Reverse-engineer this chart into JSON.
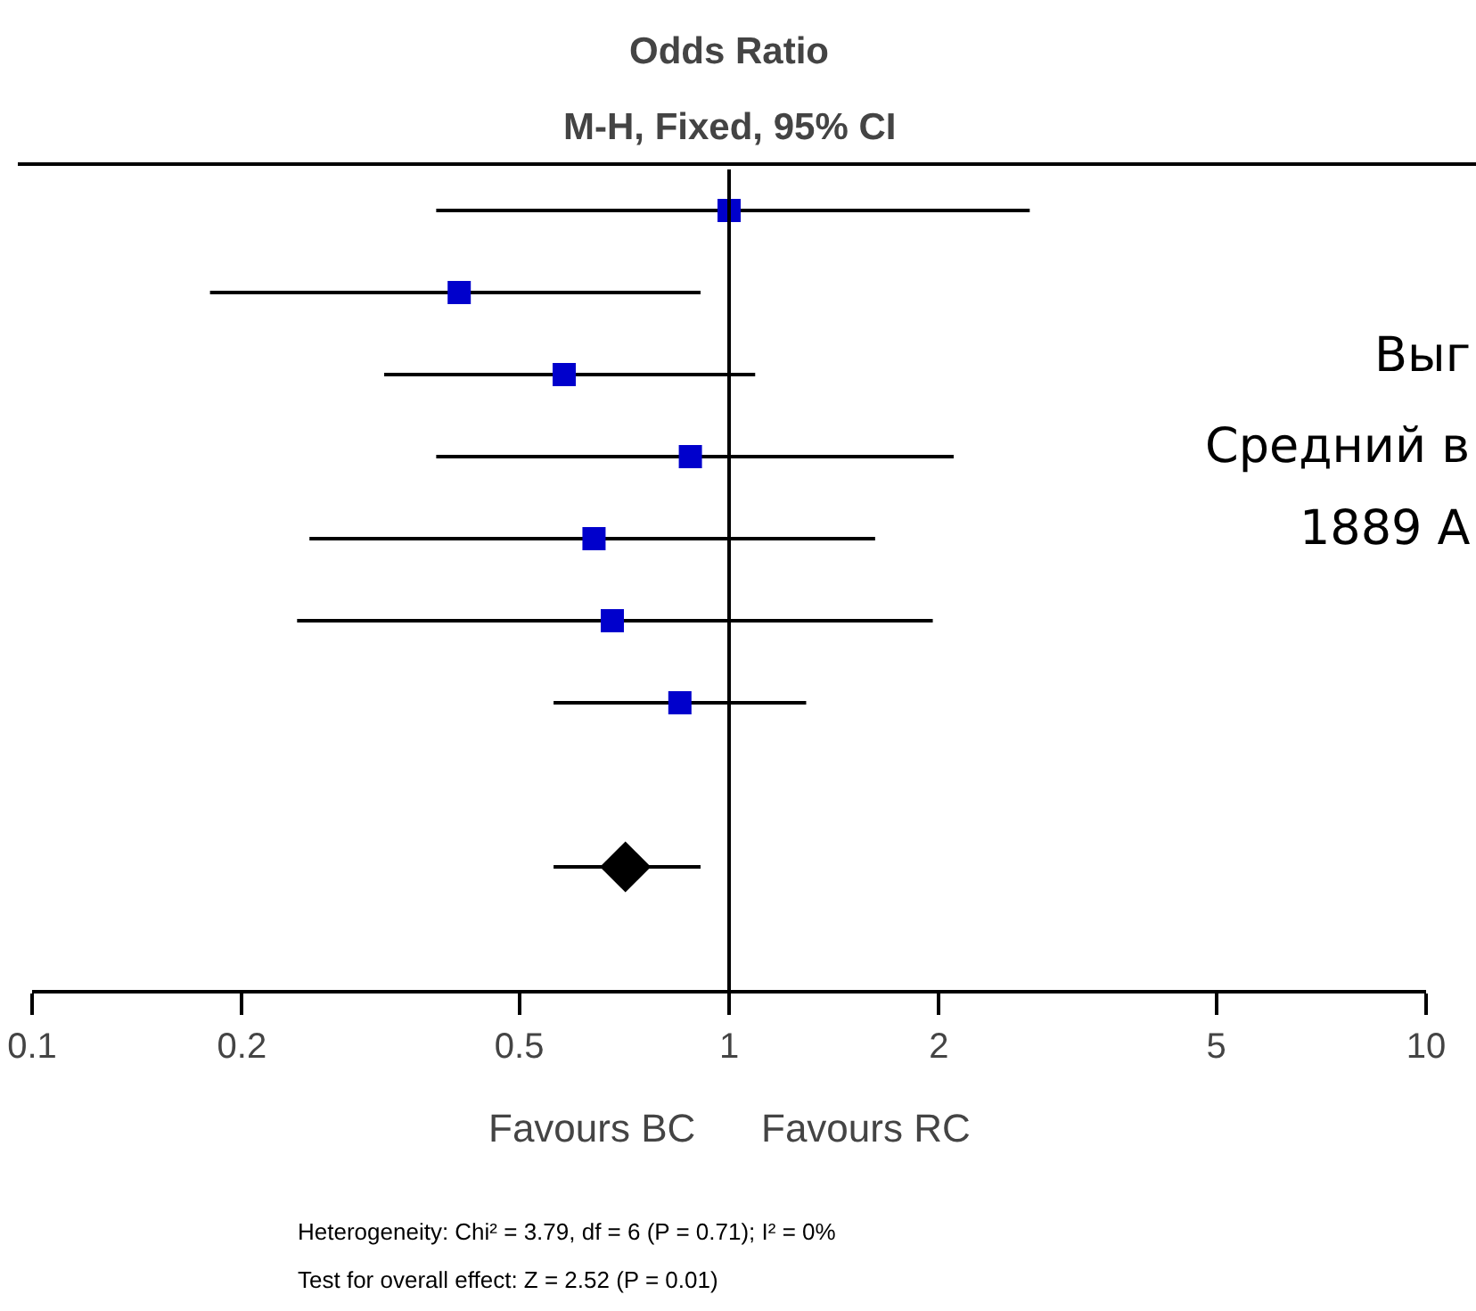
{
  "chart_data": {
    "type": "scatter",
    "title": "Odds Ratio",
    "subtitle": "M-H, Fixed, 95% CI",
    "orientation": "horizontal",
    "log": "x",
    "grid": false,
    "tick_labels": "x",
    "categories": [
      null,
      null,
      null,
      null,
      null,
      null,
      null,
      null,
      null,
      null
    ],
    "xlim": [
      0.1,
      10
    ],
    "xticks": [
      0.1,
      0.2,
      0.5,
      1,
      2,
      5,
      10
    ],
    "series": [
      {
        "color": "#0000cc",
        "marker": "square",
        "values": [
          1.0,
          0.41,
          0.58,
          0.88,
          0.64,
          0.68,
          0.85,
          null,
          null,
          null
        ],
        "errors": [
          [
            0.38,
            2.7
          ],
          [
            0.18,
            0.91
          ],
          [
            0.32,
            1.09
          ],
          [
            0.38,
            2.1
          ],
          [
            0.25,
            1.62
          ],
          [
            0.24,
            1.96
          ],
          [
            0.56,
            1.29
          ],
          null,
          null,
          null
        ]
      },
      {
        "color": "#000000",
        "marker": "diamond",
        "values": [
          null,
          null,
          null,
          null,
          null,
          null,
          null,
          null,
          0.71,
          null
        ],
        "errors": [
          null,
          null,
          null,
          null,
          null,
          null,
          null,
          null,
          [
            0.56,
            0.91
          ],
          null
        ]
      }
    ],
    "ref_lines": [
      {
        "axis": "x",
        "value": 1,
        "color": "#000000"
      }
    ],
    "annotations": [
      "Favours BC",
      "Favours RC",
      "Heterogeneity: Chi² = 3.79, df = 6 (P = 0.71); I² = 0%",
      "Test for overall effect: Z = 2.52 (P = 0.01)",
      "Выг",
      "Средний в",
      "1889 А"
    ]
  }
}
